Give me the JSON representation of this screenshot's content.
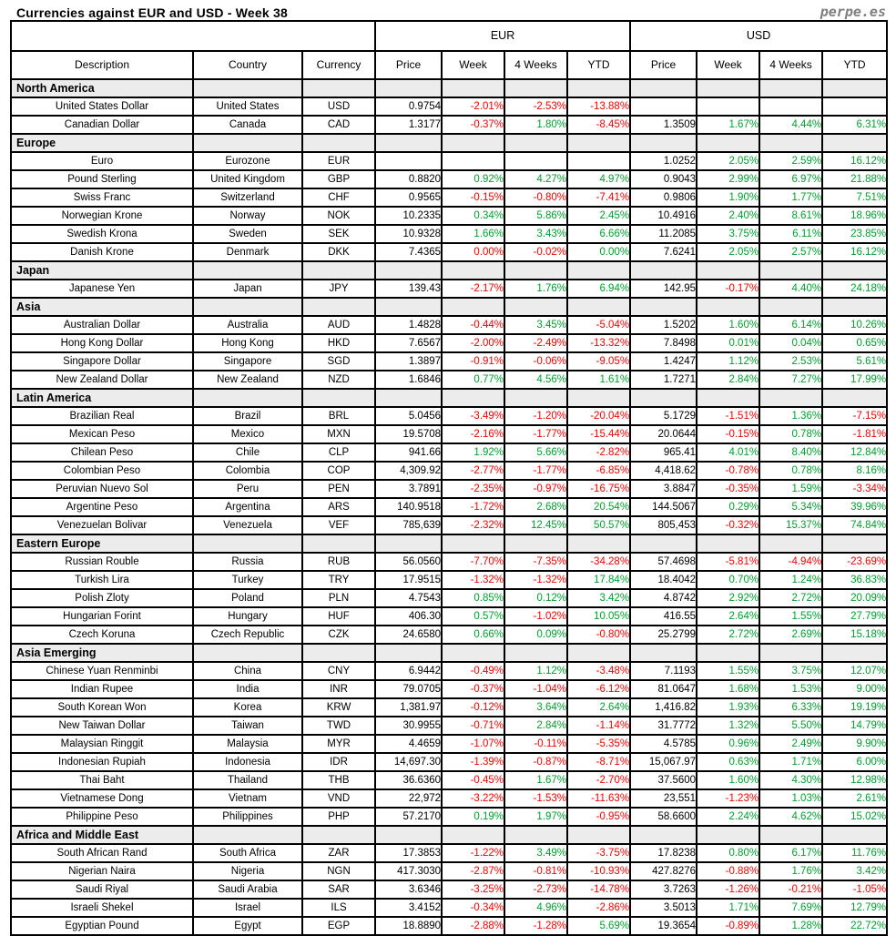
{
  "page": {
    "title": "Currencies against EUR and USD - Week 38",
    "brand": "perpe.es"
  },
  "colors": {
    "positive": "#00A12E",
    "negative": "#FF0000",
    "section_bg": "#ECECEC",
    "border": "#000000",
    "brand_text": "#7F7F7F"
  },
  "table": {
    "groups": [
      "EUR",
      "USD"
    ],
    "columns": [
      "Description",
      "Country",
      "Currency",
      "Price",
      "Week",
      "4 Weeks",
      "YTD",
      "Price",
      "Week",
      "4 Weeks",
      "YTD"
    ],
    "sections": [
      {
        "label": "North America",
        "rows": [
          {
            "desc": "United States Dollar",
            "country": "United States",
            "code": "USD",
            "cells": [
              "0.9754",
              "-2.01%|r",
              "-2.53%|r",
              "-13.88%|r",
              "",
              "",
              "",
              ""
            ]
          },
          {
            "desc": "Canadian Dollar",
            "country": "Canada",
            "code": "CAD",
            "cells": [
              "1.3177",
              "-0.37%|r",
              "1.80%|g",
              "-8.45%|r",
              "1.3509",
              "1.67%|g",
              "4.44%|g",
              "6.31%|g"
            ]
          }
        ]
      },
      {
        "label": "Europe",
        "rows": [
          {
            "desc": "Euro",
            "country": "Eurozone",
            "code": "EUR",
            "cells": [
              "",
              "",
              "",
              "",
              "1.0252",
              "2.05%|g",
              "2.59%|g",
              "16.12%|g"
            ]
          },
          {
            "desc": "Pound Sterling",
            "country": "United Kingdom",
            "code": "GBP",
            "cells": [
              "0.8820",
              "0.92%|g",
              "4.27%|g",
              "4.97%|g",
              "0.9043",
              "2.99%|g",
              "6.97%|g",
              "21.88%|g"
            ]
          },
          {
            "desc": "Swiss Franc",
            "country": "Switzerland",
            "code": "CHF",
            "cells": [
              "0.9565",
              "-0.15%|r",
              "-0.80%|r",
              "-7.41%|r",
              "0.9806",
              "1.90%|g",
              "1.77%|g",
              "7.51%|g"
            ]
          },
          {
            "desc": "Norwegian Krone",
            "country": "Norway",
            "code": "NOK",
            "cells": [
              "10.2335",
              "0.34%|g",
              "5.86%|g",
              "2.45%|g",
              "10.4916",
              "2.40%|g",
              "8.61%|g",
              "18.96%|g"
            ]
          },
          {
            "desc": "Swedish Krona",
            "country": "Sweden",
            "code": "SEK",
            "cells": [
              "10.9328",
              "1.66%|g",
              "3.43%|g",
              "6.66%|g",
              "11.2085",
              "3.75%|g",
              "6.11%|g",
              "23.85%|g"
            ]
          },
          {
            "desc": "Danish Krone",
            "country": "Denmark",
            "code": "DKK",
            "cells": [
              "7.4365",
              "0.00%|r",
              "-0.02%|r",
              "0.00%|g",
              "7.6241",
              "2.05%|g",
              "2.57%|g",
              "16.12%|g"
            ]
          }
        ]
      },
      {
        "label": "Japan",
        "rows": [
          {
            "desc": "Japanese Yen",
            "country": "Japan",
            "code": "JPY",
            "cells": [
              "139.43",
              "-2.17%|r",
              "1.76%|g",
              "6.94%|g",
              "142.95",
              "-0.17%|r",
              "4.40%|g",
              "24.18%|g"
            ]
          }
        ]
      },
      {
        "label": "Asia",
        "rows": [
          {
            "desc": "Australian Dollar",
            "country": "Australia",
            "code": "AUD",
            "cells": [
              "1.4828",
              "-0.44%|r",
              "3.45%|g",
              "-5.04%|r",
              "1.5202",
              "1.60%|g",
              "6.14%|g",
              "10.26%|g"
            ]
          },
          {
            "desc": "Hong Kong Dollar",
            "country": "Hong Kong",
            "code": "HKD",
            "cells": [
              "7.6567",
              "-2.00%|r",
              "-2.49%|r",
              "-13.32%|r",
              "7.8498",
              "0.01%|g",
              "0.04%|g",
              "0.65%|g"
            ]
          },
          {
            "desc": "Singapore Dollar",
            "country": "Singapore",
            "code": "SGD",
            "cells": [
              "1.3897",
              "-0.91%|r",
              "-0.06%|r",
              "-9.05%|r",
              "1.4247",
              "1.12%|g",
              "2.53%|g",
              "5.61%|g"
            ]
          },
          {
            "desc": "New Zealand Dollar",
            "country": "New Zealand",
            "code": "NZD",
            "cells": [
              "1.6846",
              "0.77%|g",
              "4.56%|g",
              "1.61%|g",
              "1.7271",
              "2.84%|g",
              "7.27%|g",
              "17.99%|g"
            ]
          }
        ]
      },
      {
        "label": "Latin America",
        "rows": [
          {
            "desc": "Brazilian Real",
            "country": "Brazil",
            "code": "BRL",
            "cells": [
              "5.0456",
              "-3.49%|r",
              "-1.20%|r",
              "-20.04%|r",
              "5.1729",
              "-1.51%|r",
              "1.36%|g",
              "-7.15%|r"
            ]
          },
          {
            "desc": "Mexican Peso",
            "country": "Mexico",
            "code": "MXN",
            "cells": [
              "19.5708",
              "-2.16%|r",
              "-1.77%|r",
              "-15.44%|r",
              "20.0644",
              "-0.15%|r",
              "0.78%|g",
              "-1.81%|r"
            ]
          },
          {
            "desc": "Chilean Peso",
            "country": "Chile",
            "code": "CLP",
            "cells": [
              "941.66",
              "1.92%|g",
              "5.66%|g",
              "-2.82%|r",
              "965.41",
              "4.01%|g",
              "8.40%|g",
              "12.84%|g"
            ]
          },
          {
            "desc": "Colombian Peso",
            "country": "Colombia",
            "code": "COP",
            "cells": [
              "4,309.92",
              "-2.77%|r",
              "-1.77%|r",
              "-6.85%|r",
              "4,418.62",
              "-0.78%|r",
              "0.78%|g",
              "8.16%|g"
            ]
          },
          {
            "desc": "Peruvian Nuevo Sol",
            "country": "Peru",
            "code": "PEN",
            "cells": [
              "3.7891",
              "-2.35%|r",
              "-0.97%|r",
              "-16.75%|r",
              "3.8847",
              "-0.35%|r",
              "1.59%|g",
              "-3.34%|r"
            ]
          },
          {
            "desc": "Argentine Peso",
            "country": "Argentina",
            "code": "ARS",
            "cells": [
              "140.9518",
              "-1.72%|r",
              "2.68%|g",
              "20.54%|g",
              "144.5067",
              "0.29%|g",
              "5.34%|g",
              "39.96%|g"
            ]
          },
          {
            "desc": "Venezuelan Bolivar",
            "country": "Venezuela",
            "code": "VEF",
            "cells": [
              "785,639",
              "-2.32%|r",
              "12.45%|g",
              "50.57%|g",
              "805,453",
              "-0.32%|r",
              "15.37%|g",
              "74.84%|g"
            ]
          }
        ]
      },
      {
        "label": "Eastern Europe",
        "rows": [
          {
            "desc": "Russian Rouble",
            "country": "Russia",
            "code": "RUB",
            "cells": [
              "56.0560",
              "-7.70%|r",
              "-7.35%|r",
              "-34.28%|r",
              "57.4698",
              "-5.81%|r",
              "-4.94%|r",
              "-23.69%|r"
            ]
          },
          {
            "desc": "Turkish Lira",
            "country": "Turkey",
            "code": "TRY",
            "cells": [
              "17.9515",
              "-1.32%|r",
              "-1.32%|r",
              "17.84%|g",
              "18.4042",
              "0.70%|g",
              "1.24%|g",
              "36.83%|g"
            ]
          },
          {
            "desc": "Polish Zloty",
            "country": "Poland",
            "code": "PLN",
            "cells": [
              "4.7543",
              "0.85%|g",
              "0.12%|g",
              "3.42%|g",
              "4.8742",
              "2.92%|g",
              "2.72%|g",
              "20.09%|g"
            ]
          },
          {
            "desc": "Hungarian Forint",
            "country": "Hungary",
            "code": "HUF",
            "cells": [
              "406.30",
              "0.57%|g",
              "-1.02%|r",
              "10.05%|g",
              "416.55",
              "2.64%|g",
              "1.55%|g",
              "27.79%|g"
            ]
          },
          {
            "desc": "Czech Koruna",
            "country": "Czech Republic",
            "code": "CZK",
            "cells": [
              "24.6580",
              "0.66%|g",
              "0.09%|g",
              "-0.80%|r",
              "25.2799",
              "2.72%|g",
              "2.69%|g",
              "15.18%|g"
            ]
          }
        ]
      },
      {
        "label": "Asia Emerging",
        "rows": [
          {
            "desc": "Chinese Yuan Renminbi",
            "country": "China",
            "code": "CNY",
            "cells": [
              "6.9442",
              "-0.49%|r",
              "1.12%|g",
              "-3.48%|r",
              "7.1193",
              "1.55%|g",
              "3.75%|g",
              "12.07%|g"
            ]
          },
          {
            "desc": "Indian Rupee",
            "country": "India",
            "code": "INR",
            "cells": [
              "79.0705",
              "-0.37%|r",
              "-1.04%|r",
              "-6.12%|r",
              "81.0647",
              "1.68%|g",
              "1.53%|g",
              "9.00%|g"
            ]
          },
          {
            "desc": "South Korean Won",
            "country": "Korea",
            "code": "KRW",
            "cells": [
              "1,381.97",
              "-0.12%|r",
              "3.64%|g",
              "2.64%|g",
              "1,416.82",
              "1.93%|g",
              "6.33%|g",
              "19.19%|g"
            ]
          },
          {
            "desc": "New Taiwan Dollar",
            "country": "Taiwan",
            "code": "TWD",
            "cells": [
              "30.9955",
              "-0.71%|r",
              "2.84%|g",
              "-1.14%|r",
              "31.7772",
              "1.32%|g",
              "5.50%|g",
              "14.79%|g"
            ]
          },
          {
            "desc": "Malaysian Ringgit",
            "country": "Malaysia",
            "code": "MYR",
            "cells": [
              "4.4659",
              "-1.07%|r",
              "-0.11%|r",
              "-5.35%|r",
              "4.5785",
              "0.96%|g",
              "2.49%|g",
              "9.90%|g"
            ]
          },
          {
            "desc": "Indonesian Rupiah",
            "country": "Indonesia",
            "code": "IDR",
            "cells": [
              "14,697.30",
              "-1.39%|r",
              "-0.87%|r",
              "-8.71%|r",
              "15,067.97",
              "0.63%|g",
              "1.71%|g",
              "6.00%|g"
            ]
          },
          {
            "desc": "Thai Baht",
            "country": "Thailand",
            "code": "THB",
            "cells": [
              "36.6360",
              "-0.45%|r",
              "1.67%|g",
              "-2.70%|r",
              "37.5600",
              "1.60%|g",
              "4.30%|g",
              "12.98%|g"
            ]
          },
          {
            "desc": "Vietnamese Dong",
            "country": "Vietnam",
            "code": "VND",
            "cells": [
              "22,972",
              "-3.22%|r",
              "-1.53%|r",
              "-11.63%|r",
              "23,551",
              "-1.23%|r",
              "1.03%|g",
              "2.61%|g"
            ]
          },
          {
            "desc": "Philippine Peso",
            "country": "Philippines",
            "code": "PHP",
            "cells": [
              "57.2170",
              "0.19%|g",
              "1.97%|g",
              "-0.95%|r",
              "58.6600",
              "2.24%|g",
              "4.62%|g",
              "15.02%|g"
            ]
          }
        ]
      },
      {
        "label": "Africa and Middle East",
        "rows": [
          {
            "desc": "South African Rand",
            "country": "South Africa",
            "code": "ZAR",
            "cells": [
              "17.3853",
              "-1.22%|r",
              "3.49%|g",
              "-3.75%|r",
              "17.8238",
              "0.80%|g",
              "6.17%|g",
              "11.76%|g"
            ]
          },
          {
            "desc": "Nigerian Naira",
            "country": "Nigeria",
            "code": "NGN",
            "cells": [
              "417.3030",
              "-2.87%|r",
              "-0.81%|r",
              "-10.93%|r",
              "427.8276",
              "-0.88%|r",
              "1.76%|g",
              "3.42%|g"
            ]
          },
          {
            "desc": "Saudi Riyal",
            "country": "Saudi Arabia",
            "code": "SAR",
            "cells": [
              "3.6346",
              "-3.25%|r",
              "-2.73%|r",
              "-14.78%|r",
              "3.7263",
              "-1.26%|r",
              "-0.21%|r",
              "-1.05%|r"
            ]
          },
          {
            "desc": "Israeli Shekel",
            "country": "Israel",
            "code": "ILS",
            "cells": [
              "3.4152",
              "-0.34%|r",
              "4.96%|g",
              "-2.86%|r",
              "3.5013",
              "1.71%|g",
              "7.69%|g",
              "12.79%|g"
            ]
          },
          {
            "desc": "Egyptian Pound",
            "country": "Egypt",
            "code": "EGP",
            "cells": [
              "18.8890",
              "-2.88%|r",
              "-1.28%|r",
              "5.69%|g",
              "19.3654",
              "-0.89%|r",
              "1.28%|g",
              "22.72%|g"
            ]
          }
        ]
      }
    ]
  }
}
